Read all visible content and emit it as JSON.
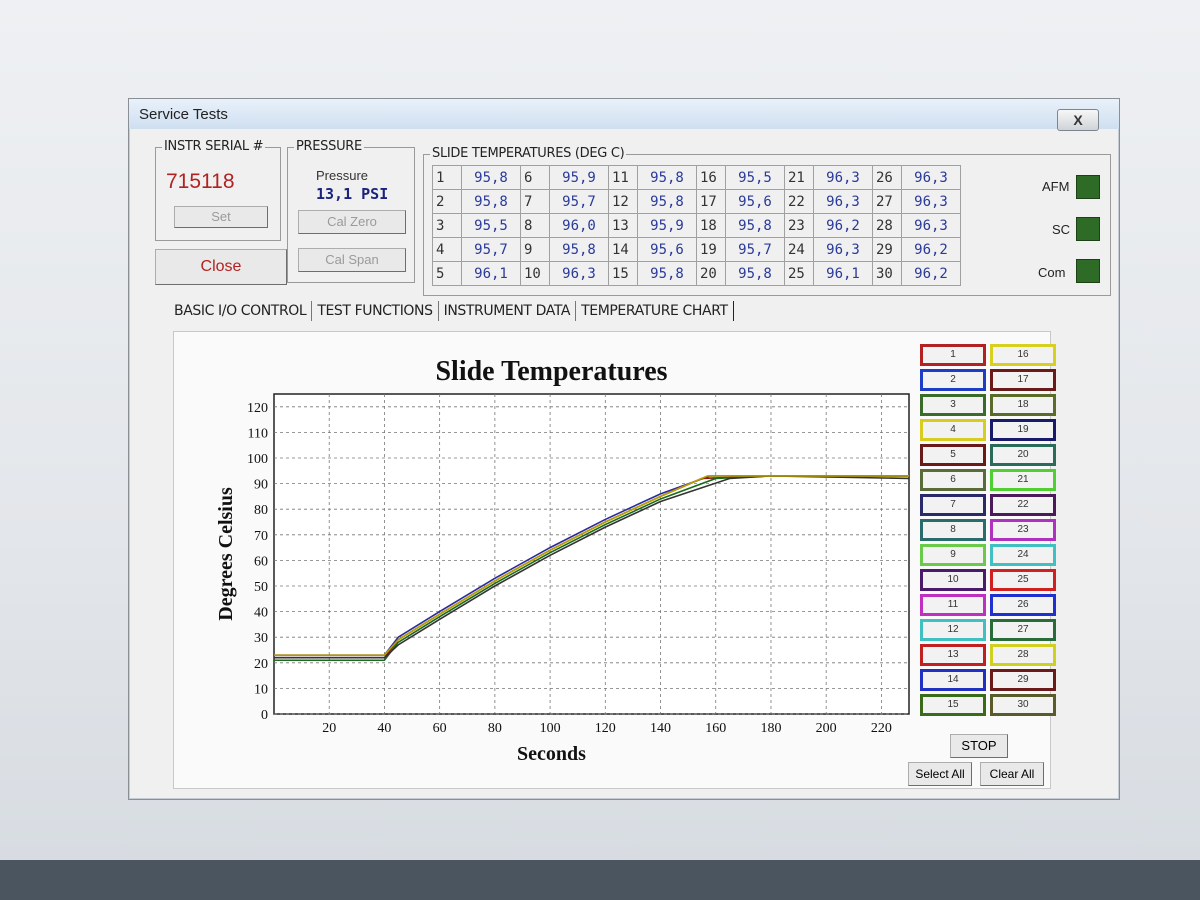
{
  "window": {
    "title": "Service Tests",
    "close_label": "X"
  },
  "serial": {
    "group_label": "INSTR SERIAL #",
    "value": "715118",
    "set_label": "Set",
    "close_label": "Close"
  },
  "pressure": {
    "group_label": "PRESSURE",
    "label": "Pressure",
    "value": "13,1 PSI",
    "cal_zero_label": "Cal Zero",
    "cal_span_label": "Cal Span"
  },
  "slides": {
    "group_label": "SLIDE TEMPERATURES (DEG C)",
    "items": [
      {
        "n": "1",
        "v": "95,8"
      },
      {
        "n": "2",
        "v": "95,8"
      },
      {
        "n": "3",
        "v": "95,5"
      },
      {
        "n": "4",
        "v": "95,7"
      },
      {
        "n": "5",
        "v": "96,1"
      },
      {
        "n": "6",
        "v": "95,9"
      },
      {
        "n": "7",
        "v": "95,7"
      },
      {
        "n": "8",
        "v": "96,0"
      },
      {
        "n": "9",
        "v": "95,8"
      },
      {
        "n": "10",
        "v": "96,3"
      },
      {
        "n": "11",
        "v": "95,8"
      },
      {
        "n": "12",
        "v": "95,8"
      },
      {
        "n": "13",
        "v": "95,9"
      },
      {
        "n": "14",
        "v": "95,6"
      },
      {
        "n": "15",
        "v": "95,8"
      },
      {
        "n": "16",
        "v": "95,5"
      },
      {
        "n": "17",
        "v": "95,6"
      },
      {
        "n": "18",
        "v": "95,8"
      },
      {
        "n": "19",
        "v": "95,7"
      },
      {
        "n": "20",
        "v": "95,8"
      },
      {
        "n": "21",
        "v": "96,3"
      },
      {
        "n": "22",
        "v": "96,3"
      },
      {
        "n": "23",
        "v": "96,2"
      },
      {
        "n": "24",
        "v": "96,3"
      },
      {
        "n": "25",
        "v": "96,1"
      },
      {
        "n": "26",
        "v": "96,3"
      },
      {
        "n": "27",
        "v": "96,3"
      },
      {
        "n": "28",
        "v": "96,3"
      },
      {
        "n": "29",
        "v": "96,2"
      },
      {
        "n": "30",
        "v": "96,2"
      }
    ]
  },
  "status": {
    "afm_label": "AFM",
    "sc_label": "SC",
    "com_label": "Com",
    "led_color": "#2e6b27"
  },
  "tabs": [
    {
      "label": "BASIC I/O CONTROL"
    },
    {
      "label": "TEST FUNCTIONS"
    },
    {
      "label": "INSTRUMENT DATA"
    },
    {
      "label": "TEMPERATURE CHART"
    }
  ],
  "chart_data": {
    "type": "line",
    "title": "Slide Temperatures",
    "xlabel": "Seconds",
    "ylabel": "Degrees Celsius",
    "xlim": [
      0,
      230
    ],
    "ylim": [
      0,
      125
    ],
    "x_ticks": [
      20,
      40,
      60,
      80,
      100,
      120,
      140,
      160,
      180,
      200,
      220
    ],
    "y_ticks": [
      0,
      10,
      20,
      30,
      40,
      50,
      60,
      70,
      80,
      90,
      100,
      110,
      120
    ],
    "grid": true,
    "series": [
      {
        "color": "#2a2a9a",
        "x": [
          0,
          40,
          45,
          60,
          80,
          100,
          120,
          140,
          158,
          180,
          230
        ],
        "y": [
          23,
          23,
          30,
          40,
          53,
          65,
          76,
          86,
          93,
          93,
          93
        ]
      },
      {
        "color": "#8b1a1a",
        "x": [
          0,
          40,
          45,
          60,
          80,
          100,
          120,
          140,
          155,
          180,
          230
        ],
        "y": [
          22,
          22,
          29,
          39,
          52,
          64,
          75,
          85,
          92,
          93,
          93
        ]
      },
      {
        "color": "#1a6b1a",
        "x": [
          0,
          40,
          45,
          60,
          80,
          100,
          120,
          140,
          160,
          180,
          230
        ],
        "y": [
          21,
          21,
          28,
          38,
          51,
          63,
          74,
          84,
          92,
          93,
          93
        ]
      },
      {
        "color": "#333333",
        "x": [
          0,
          40,
          45,
          60,
          80,
          100,
          120,
          140,
          165,
          180,
          230
        ],
        "y": [
          22,
          22,
          27,
          37,
          50,
          62,
          73,
          83,
          92,
          93,
          92
        ]
      },
      {
        "color": "#b8a000",
        "x": [
          0,
          40,
          45,
          60,
          80,
          100,
          120,
          140,
          157,
          180,
          230
        ],
        "y": [
          23,
          23,
          29,
          39,
          52,
          64,
          75,
          85,
          93,
          93,
          93
        ]
      }
    ]
  },
  "legend": {
    "items": [
      {
        "label": "1",
        "color": "#b22222"
      },
      {
        "label": "2",
        "color": "#1e3cc8"
      },
      {
        "label": "3",
        "color": "#3a6b2a"
      },
      {
        "label": "4",
        "color": "#d8cc20"
      },
      {
        "label": "5",
        "color": "#6b1a1a"
      },
      {
        "label": "6",
        "color": "#5a6b3a"
      },
      {
        "label": "7",
        "color": "#2a2a6b"
      },
      {
        "label": "8",
        "color": "#2a6b6b"
      },
      {
        "label": "9",
        "color": "#6acb4a"
      },
      {
        "label": "10",
        "color": "#4a1a6b"
      },
      {
        "label": "11",
        "color": "#c030c0"
      },
      {
        "label": "12",
        "color": "#40c0c0"
      },
      {
        "label": "13",
        "color": "#c02020"
      },
      {
        "label": "14",
        "color": "#2030c0"
      },
      {
        "label": "15",
        "color": "#3a6b1a"
      },
      {
        "label": "16",
        "color": "#d8d020"
      },
      {
        "label": "17",
        "color": "#6b1a1a"
      },
      {
        "label": "18",
        "color": "#5a6b2a"
      },
      {
        "label": "19",
        "color": "#1a1a6b"
      },
      {
        "label": "20",
        "color": "#2a6b5a"
      },
      {
        "label": "21",
        "color": "#50d030"
      },
      {
        "label": "22",
        "color": "#4a1a5a"
      },
      {
        "label": "23",
        "color": "#b030c0"
      },
      {
        "label": "24",
        "color": "#40c0c0"
      },
      {
        "label": "25",
        "color": "#d02020"
      },
      {
        "label": "26",
        "color": "#2030d0"
      },
      {
        "label": "27",
        "color": "#2a6b3a"
      },
      {
        "label": "28",
        "color": "#d0d020"
      },
      {
        "label": "29",
        "color": "#6b1a1a"
      },
      {
        "label": "30",
        "color": "#5a5a2a"
      }
    ],
    "stop_label": "STOP",
    "select_all_label": "Select All",
    "clear_all_label": "Clear All"
  }
}
